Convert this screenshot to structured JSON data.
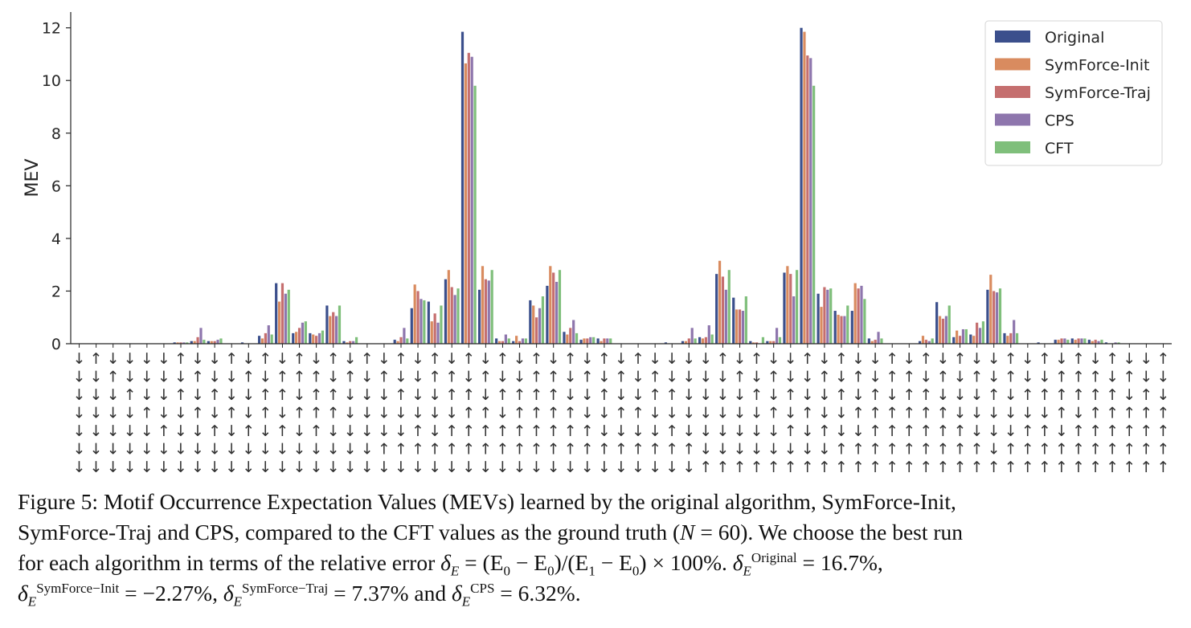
{
  "chart_data": {
    "type": "bar",
    "ylabel": "MEV",
    "ylim": [
      0,
      12.6
    ],
    "yticks": [
      0,
      2,
      4,
      6,
      8,
      10,
      12
    ],
    "grid": false,
    "legend_position": "top-right",
    "category_arrows": [
      "↓↓↓↓↓↓↓",
      "↑↓↓↓↓↓↓",
      "↓↑↓↓↓↓↓",
      "↓↓↑↓↓↓↓",
      "↓↓↓↑↓↓↓",
      "↓↓↓↓↑↓↓",
      "↑↓↑↓↓↓↓",
      "↓↑↓↑↓↓↓",
      "↓↓↑↓↑↓↓",
      "↑↓↓↑↓↓↓",
      "↓↑↓↓↑↓↓",
      "↑↓↑↑↓↓↓",
      "↓↑↑↓↑↓↓",
      "↑↑↓↑↓↓↓",
      "↓↑↑↑↑↓↓",
      "↑↓↑↑↓↓↓",
      "↓↑↓↓↓↓↓",
      "↑↓↓↓↓↓↓",
      "↓↑↓↓↓↑↓",
      "↑↓↑↓↓↑↓",
      "↓↓↓↓↑↑↓",
      "↑↑↓↓↓↑↓",
      "↓↑↑↓↑↑↓",
      "↑↓↑↑↑↑↓",
      "↓↑↓↑↑↑↓",
      "↑↓↑↓↑↑↓",
      "↓↓↑↑↑↑↓",
      "↑↑↑↑↑↑↓",
      "↓↑↑↑↑↑↓",
      "↑↓↓↑↑↑↓",
      "↓↑↓↓↑↑↓",
      "↑↓↑↓↓↑↓",
      "↓↑↓↑↓↑↓",
      "↑↓↓↑↓↑↓",
      "↓↑↑↓↓↑↓",
      "↓↓↑↓↑↑↓",
      "↓↓↓↓↓↑↓",
      "↓↓↓↓↓↓↑",
      "↑↓↓↓↓↓↑",
      "↓↑↓↓↓↓↑",
      "↑↓↑↓↓↓↑",
      "↓↑↓↑↓↓↑",
      "↓↓↑↓↑↓↑",
      "↑↓↓↑↓↓↑",
      "↓↑↓↓↑↓↑",
      "↑↓↑↓↓↑↑",
      "↓↑↓↑↓↑↑",
      "↓↓↑↑↑↑↑",
      "↑↑↓↑↑↑↑",
      "↓↑↑↑↑↑↑",
      "↑↓↑↑↑↑↑",
      "↓↑↓↑↑↑↑",
      "↑↓↓↓↑↑↑",
      "↓↑↓↓↓↑↑",
      "↓↓↑↓↓↓↑",
      "↑↑↓↓↓↑↑",
      "↓↓↑↓↑↑↑",
      "↑↓↑↓↑↑↑",
      "↓↑↑↑↓↑↑",
      "↑↑↑↓↑↑↑",
      "↓↑↑↑↑↑↑",
      "↑↓↑↑↑↑↑",
      "↓↑↓↑↑↑↑",
      "↓↓↑↑↑↑↑",
      "↑↓↓↑↑↑↑"
    ],
    "series": [
      {
        "name": "Original",
        "color": "#3b4f8c",
        "values": [
          0,
          0,
          0,
          0,
          0,
          0,
          0.05,
          0.1,
          0.1,
          0,
          0.05,
          0.3,
          2.3,
          0.4,
          0.4,
          1.45,
          0.1,
          0,
          0,
          0.15,
          1.35,
          1.6,
          2.45,
          11.85,
          2.05,
          0.2,
          0.1,
          1.65,
          2.2,
          0.45,
          0.15,
          0.2,
          0,
          0,
          0,
          0.05,
          0.1,
          0.25,
          2.65,
          1.75,
          0.1,
          0.1,
          2.7,
          12.0,
          1.9,
          1.25,
          1.25,
          0.2,
          0,
          0,
          0.1,
          1.58,
          0.25,
          0.35,
          2.05,
          0.4,
          0,
          0.05,
          0.15,
          0.2,
          0.15,
          0.05,
          0,
          0,
          0
        ]
      },
      {
        "name": "SymForce-Init",
        "color": "#d98b5f",
        "values": [
          0,
          0,
          0,
          0,
          0,
          0,
          0.05,
          0.1,
          0.1,
          0,
          0,
          0.2,
          1.6,
          0.45,
          0.35,
          1.05,
          0.05,
          0,
          0,
          0.1,
          2.25,
          0.85,
          2.8,
          10.65,
          2.95,
          0.1,
          0.3,
          1.45,
          2.95,
          0.35,
          0.2,
          0.1,
          0,
          0,
          0,
          0,
          0.1,
          0.2,
          3.15,
          1.3,
          0.05,
          0.1,
          2.95,
          11.85,
          1.4,
          1.1,
          2.3,
          0.1,
          0,
          0,
          0.3,
          1.05,
          0.5,
          0.3,
          2.62,
          0.3,
          0,
          0,
          0.15,
          0.15,
          0.1,
          0,
          0,
          0,
          0
        ]
      },
      {
        "name": "SymForce-Traj",
        "color": "#c56f6f",
        "values": [
          0,
          0,
          0,
          0,
          0,
          0,
          0.05,
          0.25,
          0.1,
          0,
          0,
          0.4,
          2.3,
          0.6,
          0.3,
          1.2,
          0.1,
          0,
          0,
          0.25,
          2.0,
          1.15,
          2.15,
          11.05,
          2.45,
          0.1,
          0.1,
          1.0,
          2.7,
          0.6,
          0.2,
          0.2,
          0,
          0,
          0,
          0,
          0.2,
          0.25,
          2.55,
          1.3,
          0.05,
          0.1,
          2.65,
          10.95,
          2.15,
          1.05,
          2.1,
          0.15,
          0,
          0,
          0.15,
          0.95,
          0.3,
          0.8,
          2.0,
          0.4,
          0,
          0,
          0.2,
          0.2,
          0.15,
          0,
          0,
          0,
          0
        ]
      },
      {
        "name": "CPS",
        "color": "#8e76ad",
        "values": [
          0,
          0,
          0,
          0,
          0,
          0,
          0.05,
          0.6,
          0.15,
          0,
          0,
          0.7,
          1.9,
          0.8,
          0.4,
          1.05,
          0.1,
          0,
          0,
          0.6,
          1.7,
          0.8,
          1.85,
          10.9,
          2.4,
          0.35,
          0.2,
          1.35,
          2.35,
          0.9,
          0.25,
          0.2,
          0,
          0,
          0,
          0,
          0.6,
          0.7,
          2.05,
          1.25,
          0,
          0.6,
          1.8,
          10.85,
          2.05,
          1.05,
          2.2,
          0.45,
          0,
          0,
          0.1,
          1.05,
          0.55,
          0.6,
          1.95,
          0.9,
          0,
          0,
          0.2,
          0.2,
          0.1,
          0.05,
          0,
          0,
          0
        ]
      },
      {
        "name": "CFT",
        "color": "#7fbf7b",
        "values": [
          0,
          0,
          0,
          0,
          0,
          0,
          0.05,
          0.15,
          0.2,
          0,
          0,
          0.35,
          2.05,
          0.85,
          0.5,
          1.45,
          0.25,
          0,
          0,
          0.2,
          1.65,
          1.45,
          2.1,
          9.8,
          2.8,
          0.2,
          0.2,
          1.8,
          2.8,
          0.4,
          0.25,
          0.2,
          0,
          0,
          0,
          0,
          0.2,
          0.35,
          2.8,
          1.8,
          0.25,
          0.25,
          2.8,
          9.8,
          2.1,
          1.45,
          1.7,
          0.2,
          0,
          0,
          0.2,
          1.45,
          0.55,
          0.85,
          2.1,
          0.4,
          0,
          0,
          0.15,
          0.2,
          0.15,
          0.05,
          0,
          0,
          0
        ]
      }
    ]
  },
  "caption": {
    "line1": "Figure 5:  Motif Occurrence Expectation Values (MEVs) learned by the original algorithm, SymForce-Init,",
    "line2a": "SymForce-Traj and CPS, compared to the CFT values as the ground truth (",
    "line2_n": "N",
    "line2_eq": " = 60).  We choose the best run",
    "line3a": "for each algorithm in terms of the relative error ",
    "line3_formula": " = (E",
    "line3_mid": " − E",
    "line3_mid2": ")/(E",
    "line3_mid3": " − E",
    "line3_end": ") × 100%.  ",
    "delta": "δ",
    "sub_E": "E",
    "sub_0": "0",
    "sub_1": "1",
    "sup_original": "Original",
    "val_original": " = 16.7%,",
    "sup_init": "SymForce−Init",
    "val_init": " = −2.27%, ",
    "sup_traj": "SymForce−Traj",
    "val_traj": " = 7.37% and ",
    "sup_cps": "CPS",
    "val_cps": " = 6.32%."
  }
}
